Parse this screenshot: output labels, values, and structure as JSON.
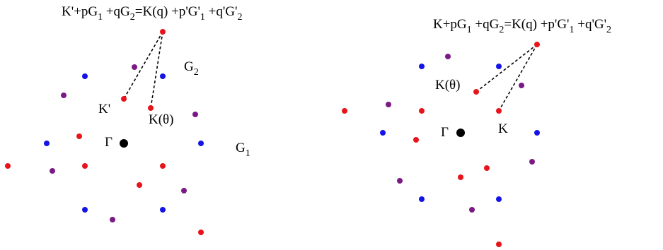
{
  "colors": {
    "red": "#e8141c",
    "blue": "#1414e6",
    "purple": "#7a1a84",
    "black": "#000000",
    "background": "#ffffff"
  },
  "left_panel": {
    "equation": {
      "part1": "K'+pG",
      "sub1": "1",
      "part2": " +qG",
      "sub2": "2",
      "part3": "=K(q) +p'G'",
      "sub3": "1",
      "part4": " +q'G'",
      "sub4": "2"
    },
    "labels": {
      "gamma": "Γ",
      "k_prime": "K'",
      "k_theta": "K(θ)",
      "g1_main": "G",
      "g1_sub": "1",
      "g2_main": "G",
      "g2_sub": "2"
    }
  },
  "right_panel": {
    "equation": {
      "part1": "K+pG",
      "sub1": "1",
      "part2": " +qG",
      "sub2": "2",
      "part3": "=K(q) +p'G'",
      "sub3": "1",
      "part4": " +q'G'",
      "sub4": "2"
    },
    "labels": {
      "gamma": "Γ",
      "k_theta": "K(θ)",
      "k": "K"
    }
  }
}
